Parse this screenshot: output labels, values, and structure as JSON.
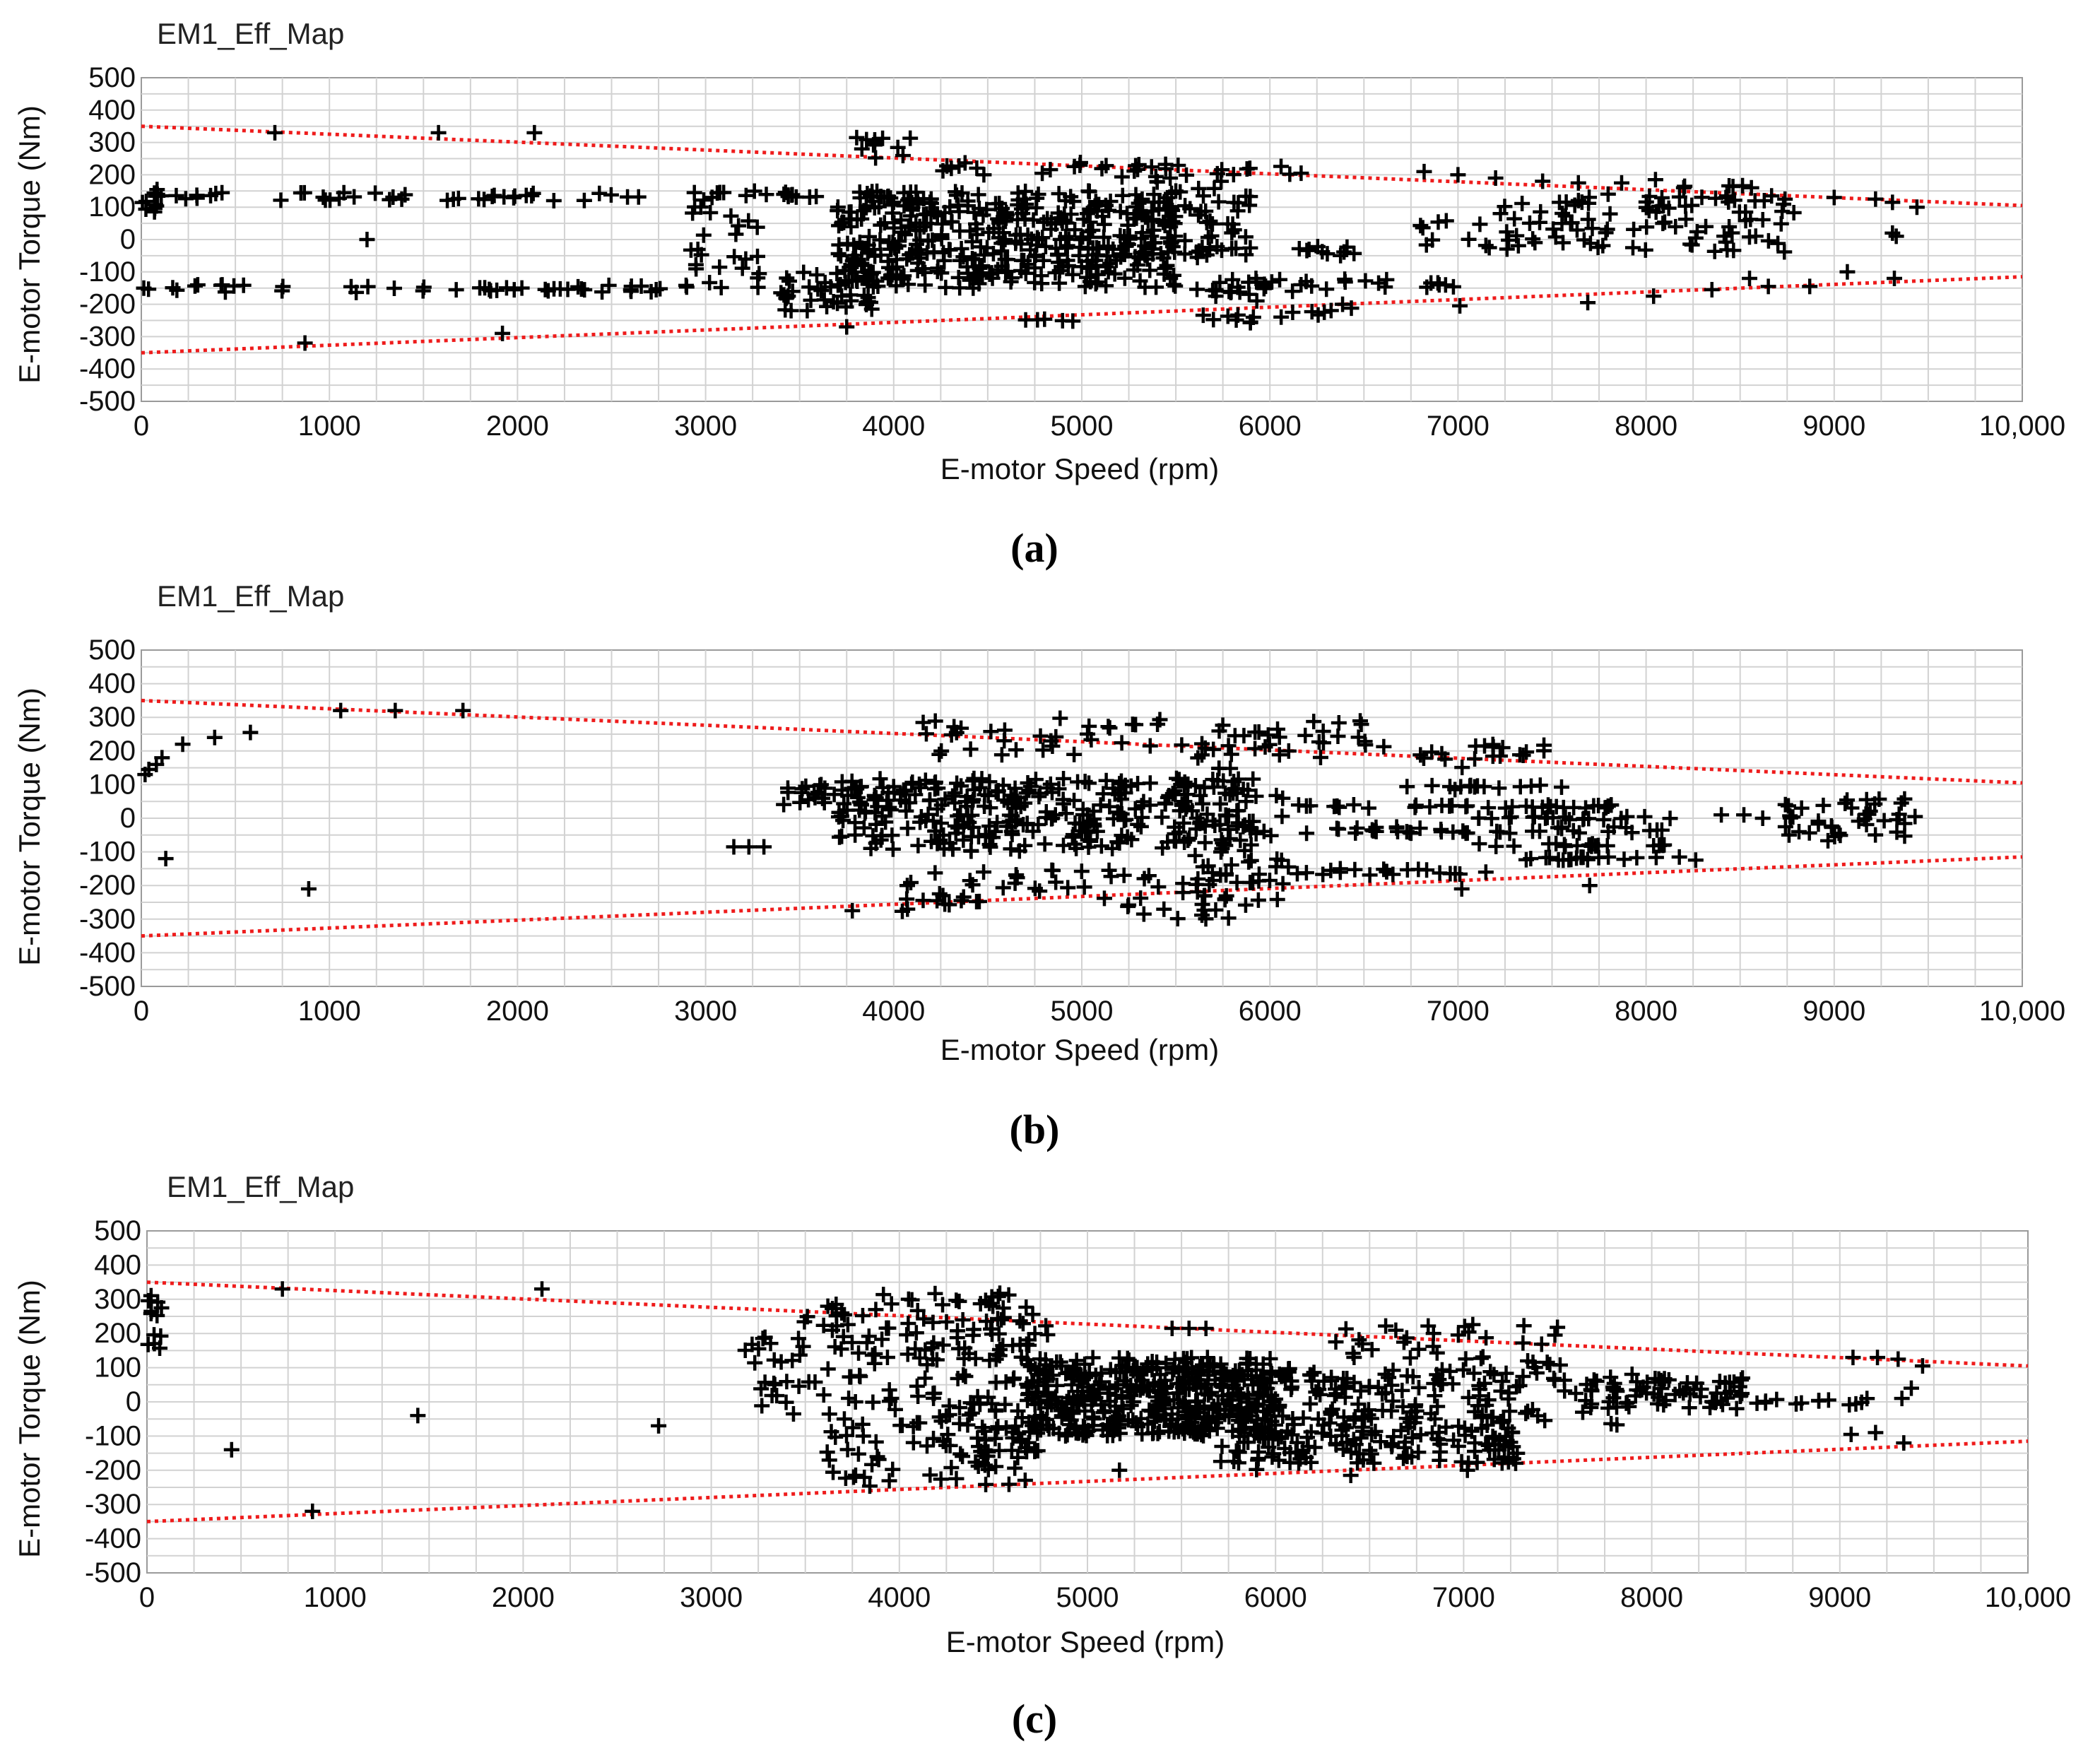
{
  "figure": {
    "panels": [
      {
        "id": "a",
        "caption": "(a)"
      },
      {
        "id": "b",
        "caption": "(b)"
      },
      {
        "id": "c",
        "caption": "(c)"
      }
    ]
  },
  "colors": {
    "marker": "#000000",
    "bound_line": "#ee1c1c",
    "grid": "#d2d2d2",
    "frame": "#9a9a9a",
    "background": "#ffffff"
  },
  "chart_data": [
    {
      "type": "scatter",
      "title": "EM1_Eff_Map",
      "xlabel": "E-motor Speed (rpm)",
      "ylabel": "E-motor Torque (Nm)",
      "xlim": [
        0,
        10000
      ],
      "ylim": [
        -500,
        500
      ],
      "x_ticks": [
        0,
        1000,
        2000,
        3000,
        4000,
        5000,
        6000,
        7000,
        8000,
        9000,
        10000
      ],
      "x_tick_labels": [
        "0",
        "1000",
        "2000",
        "3000",
        "4000",
        "5000",
        "6000",
        "7000",
        "8000",
        "9000",
        "10,000"
      ],
      "y_ticks": [
        500,
        400,
        300,
        200,
        100,
        0,
        -100,
        -200,
        -300,
        -400,
        -500
      ],
      "y_tick_labels": [
        "500",
        "400",
        "300",
        "200",
        "100",
        "0",
        "-100",
        "-200",
        "-300",
        "-400",
        "-500"
      ],
      "grid": true,
      "marker": "+",
      "bounds": [
        {
          "style": "dotted",
          "color": "#ee1c1c",
          "x": [
            0,
            10000
          ],
          "y": [
            350,
            105
          ]
        },
        {
          "style": "dotted",
          "color": "#ee1c1c",
          "x": [
            0,
            10000
          ],
          "y": [
            -350,
            -115
          ]
        }
      ],
      "clusters": [
        {
          "x": [
            0,
            100
          ],
          "y": [
            80,
            160
          ],
          "n": 10
        },
        {
          "x": [
            0,
            3000
          ],
          "y": [
            120,
            145
          ],
          "n": 45
        },
        {
          "x": [
            0,
            2900
          ],
          "y": [
            -165,
            -140
          ],
          "n": 45
        },
        {
          "x": [
            2900,
            3300
          ],
          "y": [
            -150,
            130
          ],
          "n": 25
        },
        {
          "x": [
            3400,
            3900
          ],
          "y": [
            -220,
            -100
          ],
          "n": 40
        },
        {
          "x": [
            3000,
            4000
          ],
          "y": [
            130,
            150
          ],
          "n": 20
        },
        {
          "x": [
            3700,
            5500
          ],
          "y": [
            -150,
            150
          ],
          "n": 420
        },
        {
          "x": [
            3800,
            4100
          ],
          "y": [
            250,
            320
          ],
          "n": 12
        },
        {
          "x": [
            4200,
            6300
          ],
          "y": [
            200,
            240
          ],
          "n": 30
        },
        {
          "x": [
            5200,
            5900
          ],
          "y": [
            -60,
            200
          ],
          "n": 70
        },
        {
          "x": [
            5600,
            6500
          ],
          "y": [
            -50,
            -20
          ],
          "n": 18
        },
        {
          "x": [
            5600,
            7000
          ],
          "y": [
            -160,
            -120
          ],
          "n": 30
        },
        {
          "x": [
            5600,
            6000
          ],
          "y": [
            -260,
            -150
          ],
          "n": 16
        },
        {
          "x": [
            6000,
            6500
          ],
          "y": [
            -240,
            -200
          ],
          "n": 8
        },
        {
          "x": [
            4700,
            5000
          ],
          "y": [
            -260,
            -245
          ],
          "n": 5
        },
        {
          "x": [
            6800,
            7200
          ],
          "y": [
            -30,
            60
          ],
          "n": 10
        },
        {
          "x": [
            7200,
            8800
          ],
          "y": [
            -40,
            150
          ],
          "n": 90
        },
        {
          "x": [
            8200,
            8700
          ],
          "y": [
            100,
            170
          ],
          "n": 10
        }
      ],
      "points": [
        {
          "x": 710,
          "y": 330
        },
        {
          "x": 1580,
          "y": 330
        },
        {
          "x": 2090,
          "y": 330
        },
        {
          "x": 1200,
          "y": 0
        },
        {
          "x": 870,
          "y": -320
        },
        {
          "x": 1920,
          "y": -290
        },
        {
          "x": 300,
          "y": -140
        },
        {
          "x": 430,
          "y": -140
        },
        {
          "x": 3750,
          "y": -270
        },
        {
          "x": 6820,
          "y": 210
        },
        {
          "x": 7000,
          "y": 200
        },
        {
          "x": 7200,
          "y": 190
        },
        {
          "x": 7450,
          "y": 180
        },
        {
          "x": 7640,
          "y": 175
        },
        {
          "x": 7870,
          "y": 175
        },
        {
          "x": 8050,
          "y": 185
        },
        {
          "x": 8200,
          "y": 160
        },
        {
          "x": 8560,
          "y": 160
        },
        {
          "x": 9000,
          "y": 130
        },
        {
          "x": 9220,
          "y": 125
        },
        {
          "x": 9310,
          "y": 115
        },
        {
          "x": 9440,
          "y": 100
        },
        {
          "x": 9330,
          "y": 10
        },
        {
          "x": 9310,
          "y": 20
        },
        {
          "x": 7010,
          "y": -205
        },
        {
          "x": 7690,
          "y": -195
        },
        {
          "x": 8040,
          "y": -175
        },
        {
          "x": 8350,
          "y": -155
        },
        {
          "x": 8550,
          "y": -120
        },
        {
          "x": 8650,
          "y": -145
        },
        {
          "x": 8870,
          "y": -145
        },
        {
          "x": 9070,
          "y": -100
        },
        {
          "x": 9320,
          "y": -120
        },
        {
          "x": 6900,
          "y": -140
        }
      ]
    },
    {
      "type": "scatter",
      "title": "EM1_Eff_Map",
      "xlabel": "E-motor Speed (rpm)",
      "ylabel": "E-motor Torque (Nm)",
      "xlim": [
        0,
        10000
      ],
      "ylim": [
        -500,
        500
      ],
      "x_ticks": [
        0,
        1000,
        2000,
        3000,
        4000,
        5000,
        6000,
        7000,
        8000,
        9000,
        10000
      ],
      "x_tick_labels": [
        "0",
        "1000",
        "2000",
        "3000",
        "4000",
        "5000",
        "6000",
        "7000",
        "8000",
        "9000",
        "10,000"
      ],
      "y_ticks": [
        500,
        400,
        300,
        200,
        100,
        0,
        -100,
        -200,
        -300,
        -400,
        -500
      ],
      "y_tick_labels": [
        "500",
        "400",
        "300",
        "200",
        "100",
        "0",
        "-100",
        "-200",
        "-300",
        "-400",
        "-500"
      ],
      "grid": true,
      "marker": "+",
      "bounds": [
        {
          "style": "dotted",
          "color": "#ee1c1c",
          "x": [
            0,
            10000
          ],
          "y": [
            350,
            105
          ]
        },
        {
          "style": "dotted",
          "color": "#ee1c1c",
          "x": [
            0,
            10000
          ],
          "y": [
            -350,
            -115
          ]
        }
      ],
      "clusters": [
        {
          "x": [
            3400,
            3800
          ],
          "y": [
            40,
            100
          ],
          "n": 20
        },
        {
          "x": [
            3700,
            5900
          ],
          "y": [
            -100,
            120
          ],
          "n": 320
        },
        {
          "x": [
            4000,
            5900
          ],
          "y": [
            -280,
            -150
          ],
          "n": 50
        },
        {
          "x": [
            4100,
            6600
          ],
          "y": [
            180,
            300
          ],
          "n": 60
        },
        {
          "x": [
            5500,
            6100
          ],
          "y": [
            -330,
            230
          ],
          "n": 70
        },
        {
          "x": [
            5900,
            8100
          ],
          "y": [
            -45,
            -25
          ],
          "n": 40
        },
        {
          "x": [
            6100,
            8000
          ],
          "y": [
            30,
            40
          ],
          "n": 35
        },
        {
          "x": [
            6100,
            7200
          ],
          "y": [
            -170,
            -150
          ],
          "n": 20
        },
        {
          "x": [
            6700,
            7600
          ],
          "y": [
            85,
            100
          ],
          "n": 15
        },
        {
          "x": [
            7100,
            8200
          ],
          "y": [
            -5,
            5
          ],
          "n": 20
        },
        {
          "x": [
            7100,
            8200
          ],
          "y": [
            -85,
            -75
          ],
          "n": 20
        },
        {
          "x": [
            7200,
            8300
          ],
          "y": [
            -125,
            -115
          ],
          "n": 20
        },
        {
          "x": [
            8700,
            9400
          ],
          "y": [
            -70,
            60
          ],
          "n": 40
        },
        {
          "x": [
            6600,
            7500
          ],
          "y": [
            150,
            220
          ],
          "n": 20
        }
      ],
      "points": [
        {
          "x": 20,
          "y": 130
        },
        {
          "x": 40,
          "y": 145
        },
        {
          "x": 80,
          "y": 160
        },
        {
          "x": 110,
          "y": 180
        },
        {
          "x": 220,
          "y": 220
        },
        {
          "x": 390,
          "y": 240
        },
        {
          "x": 580,
          "y": 255
        },
        {
          "x": 1060,
          "y": 320
        },
        {
          "x": 1350,
          "y": 320
        },
        {
          "x": 1710,
          "y": 320
        },
        {
          "x": 130,
          "y": -120
        },
        {
          "x": 890,
          "y": -210
        },
        {
          "x": 3150,
          "y": -85
        },
        {
          "x": 3230,
          "y": -85
        },
        {
          "x": 3310,
          "y": -85
        },
        {
          "x": 3780,
          "y": -275
        },
        {
          "x": 5330,
          "y": -285
        },
        {
          "x": 7700,
          "y": -200
        },
        {
          "x": 7020,
          "y": -210
        },
        {
          "x": 8400,
          "y": 10
        },
        {
          "x": 8520,
          "y": 10
        },
        {
          "x": 8620,
          "y": 0
        },
        {
          "x": 9430,
          "y": 5
        }
      ]
    },
    {
      "type": "scatter",
      "title": "EM1_Eff_Map",
      "xlabel": "E-motor Speed (rpm)",
      "ylabel": "E-motor Torque (Nm)",
      "xlim": [
        0,
        10000
      ],
      "ylim": [
        -500,
        500
      ],
      "x_ticks": [
        0,
        1000,
        2000,
        3000,
        4000,
        5000,
        6000,
        7000,
        8000,
        9000,
        10000
      ],
      "x_tick_labels": [
        "0",
        "1000",
        "2000",
        "3000",
        "4000",
        "5000",
        "6000",
        "7000",
        "8000",
        "9000",
        "10,000"
      ],
      "y_ticks": [
        500,
        400,
        300,
        200,
        100,
        0,
        -100,
        -200,
        -300,
        -400,
        -500
      ],
      "y_tick_labels": [
        "500",
        "400",
        "300",
        "200",
        "100",
        "0",
        "-100",
        "-200",
        "-300",
        "-400",
        "-500"
      ],
      "grid": true,
      "marker": "+",
      "bounds": [
        {
          "style": "dotted",
          "color": "#ee1c1c",
          "x": [
            0,
            10000
          ],
          "y": [
            350,
            105
          ]
        },
        {
          "style": "dotted",
          "color": "#ee1c1c",
          "x": [
            0,
            10000
          ],
          "y": [
            -350,
            -115
          ]
        }
      ],
      "clusters": [
        {
          "x": [
            0,
            80
          ],
          "y": [
            90,
            330
          ],
          "n": 12
        },
        {
          "x": [
            3150,
            3600
          ],
          "y": [
            -50,
            260
          ],
          "n": 30
        },
        {
          "x": [
            3600,
            4700
          ],
          "y": [
            -250,
            320
          ],
          "n": 180
        },
        {
          "x": [
            4700,
            6000
          ],
          "y": [
            -100,
            130
          ],
          "n": 420
        },
        {
          "x": [
            4300,
            4800
          ],
          "y": [
            -200,
            300
          ],
          "n": 50
        },
        {
          "x": [
            5700,
            6000
          ],
          "y": [
            -200,
            0
          ],
          "n": 25
        },
        {
          "x": [
            5900,
            7300
          ],
          "y": [
            -180,
            100
          ],
          "n": 240
        },
        {
          "x": [
            6300,
            7500
          ],
          "y": [
            120,
            230
          ],
          "n": 30
        },
        {
          "x": [
            7300,
            7900
          ],
          "y": [
            -80,
            120
          ],
          "n": 30
        },
        {
          "x": [
            7600,
            8000
          ],
          "y": [
            -20,
            60
          ],
          "n": 20
        },
        {
          "x": [
            8000,
            8500
          ],
          "y": [
            -20,
            70
          ],
          "n": 45
        },
        {
          "x": [
            8500,
            8900
          ],
          "y": [
            -10,
            10
          ],
          "n": 8
        },
        {
          "x": [
            8900,
            9200
          ],
          "y": [
            -10,
            10
          ],
          "n": 5
        },
        {
          "x": [
            4500,
            4700
          ],
          "y": [
            -150,
            -50
          ],
          "n": 8
        }
      ],
      "points": [
        {
          "x": 720,
          "y": 330
        },
        {
          "x": 2100,
          "y": 330
        },
        {
          "x": 1440,
          "y": -40
        },
        {
          "x": 2720,
          "y": -70
        },
        {
          "x": 450,
          "y": -140
        },
        {
          "x": 880,
          "y": -320
        },
        {
          "x": 5450,
          "y": 215
        },
        {
          "x": 5540,
          "y": 215
        },
        {
          "x": 5630,
          "y": 215
        },
        {
          "x": 5170,
          "y": -200
        },
        {
          "x": 9070,
          "y": 130
        },
        {
          "x": 9200,
          "y": 130
        },
        {
          "x": 9310,
          "y": 125
        },
        {
          "x": 9440,
          "y": 105
        },
        {
          "x": 9330,
          "y": 10
        },
        {
          "x": 9380,
          "y": 40
        },
        {
          "x": 9060,
          "y": -95
        },
        {
          "x": 9190,
          "y": -90
        },
        {
          "x": 9340,
          "y": -120
        },
        {
          "x": 6400,
          "y": -215
        },
        {
          "x": 7020,
          "y": -200
        }
      ]
    }
  ]
}
